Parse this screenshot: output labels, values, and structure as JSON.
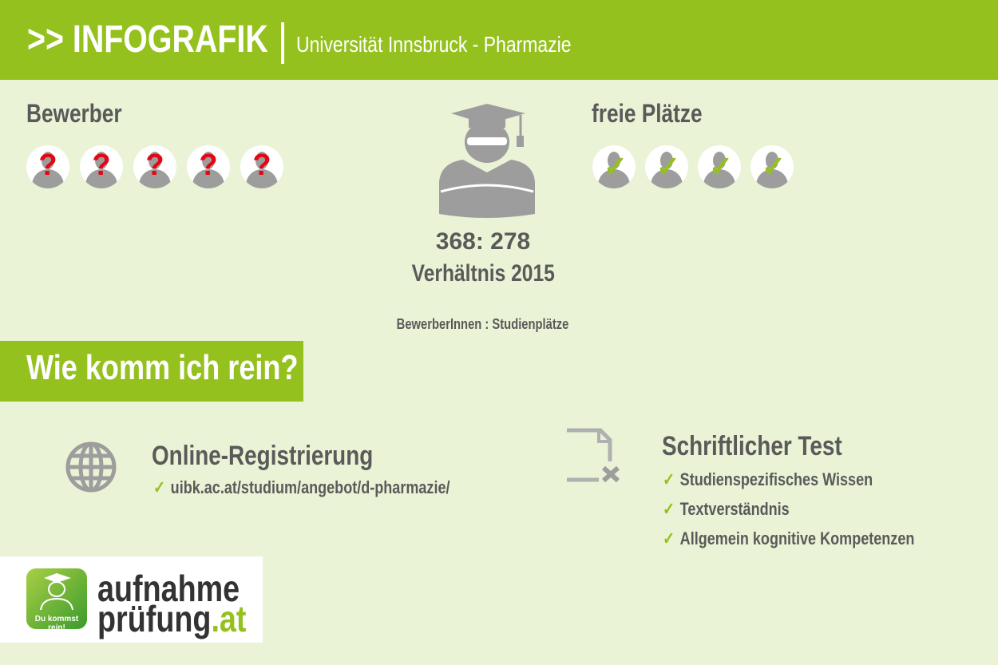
{
  "header": {
    "title": ">> INFOGRAFIK",
    "subtitle": "Universität Innsbruck - Pharmazie"
  },
  "applicants": {
    "heading": "Bewerber",
    "icon": "unknown-person-icon",
    "count_icons": 5,
    "mark": "?"
  },
  "places": {
    "heading": "freie Plätze",
    "icon": "checked-person-icon",
    "count_icons": 4,
    "mark": "✓"
  },
  "ratio": {
    "value": "368: 278",
    "label": "Verhältnis 2015",
    "note": "BewerberInnen : Studienplätze"
  },
  "how": {
    "heading": "Wie komm ich rein?"
  },
  "steps": [
    {
      "icon": "globe-icon",
      "title": "Online-Registrierung",
      "items": [
        "uibk.ac.at/studium/angebot/d-pharmazie/"
      ]
    },
    {
      "icon": "document-x-icon",
      "title": "Schriftlicher Test",
      "items": [
        "Studienspezifisches Wissen",
        "Textverständnis",
        "Allgemein kognitive Kompetenzen"
      ]
    }
  ],
  "logo": {
    "slogan": "Du kommst rein!",
    "line1": "aufnahme",
    "line2": "prüfung",
    "tld": ".at"
  },
  "colors": {
    "accent": "#95c11f",
    "background": "#eaf3d5",
    "text": "#5a5a5a",
    "question": "#e30613"
  }
}
